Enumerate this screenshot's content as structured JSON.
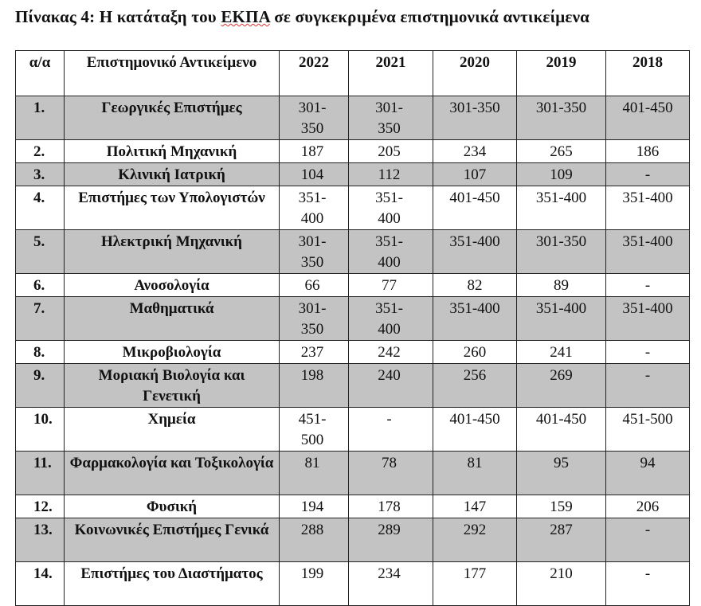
{
  "caption": {
    "prefix": "Πίνακας 4: Η κατάταξη του ",
    "underlined": "ΕΚΠΑ",
    "suffix": " σε συγκεκριμένα επιστημονικά αντικείμενα"
  },
  "headers": [
    "α/α",
    "Επιστημονικό Αντικείμενο",
    "2022",
    "2021",
    "2020",
    "2019",
    "2018"
  ],
  "rows": [
    {
      "no": "1.",
      "subject": "Γεωργικές Επιστήμες",
      "values": [
        "301-350",
        "301-350",
        "301-350",
        "301-350",
        "401-450"
      ]
    },
    {
      "no": "2.",
      "subject": "Πολιτική Μηχανική",
      "values": [
        "187",
        "205",
        "234",
        "265",
        "186"
      ]
    },
    {
      "no": "3.",
      "subject": "Κλινική Ιατρική",
      "values": [
        "104",
        "112",
        "107",
        "109",
        "-"
      ]
    },
    {
      "no": "4.",
      "subject": "Επιστήμες των Υπολογιστών",
      "values": [
        "351-400",
        "351-400",
        "401-450",
        "351-400",
        "351-400"
      ]
    },
    {
      "no": "5.",
      "subject": "Ηλεκτρική Μηχανική",
      "values": [
        "301-350",
        "351-400",
        "351-400",
        "301-350",
        "351-400"
      ]
    },
    {
      "no": "6.",
      "subject": "Ανοσολογία",
      "values": [
        "66",
        "77",
        "82",
        "89",
        "-"
      ]
    },
    {
      "no": "7.",
      "subject": "Μαθηματικά",
      "values": [
        "301-350",
        "351-400",
        "351-400",
        "351-400",
        "351-400"
      ]
    },
    {
      "no": "8.",
      "subject": "Μικροβιολογία",
      "values": [
        "237",
        "242",
        "260",
        "241",
        "-"
      ]
    },
    {
      "no": "9.",
      "subject": "Μοριακή Βιολογία και Γενετική",
      "values": [
        "198",
        "240",
        "256",
        "269",
        "-"
      ]
    },
    {
      "no": "10.",
      "subject": "Χημεία",
      "values": [
        "451-500",
        "-",
        "401-450",
        "401-450",
        "451-500"
      ]
    },
    {
      "no": "11.",
      "subject": "Φαρμακολογία και Τοξικολογία",
      "values": [
        "81",
        "78",
        "81",
        "95",
        "94"
      ]
    },
    {
      "no": "12.",
      "subject": "Φυσική",
      "values": [
        "194",
        "178",
        "147",
        "159",
        "206"
      ]
    },
    {
      "no": "13.",
      "subject": "Κοινωνικές Επιστήμες Γενικά",
      "values": [
        "288",
        "289",
        "292",
        "287",
        "-"
      ]
    },
    {
      "no": "14.",
      "subject": "Επιστήμες του Διαστήματος",
      "values": [
        "199",
        "234",
        "177",
        "210",
        "-"
      ]
    }
  ]
}
